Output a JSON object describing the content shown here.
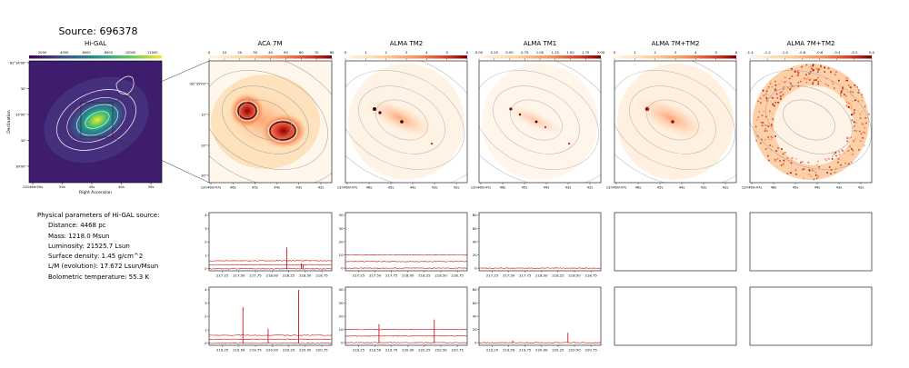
{
  "source_title": "Source: 696378",
  "hi_gal": {
    "title": "Hi-GAL",
    "colorbar_ticks": [
      "2000",
      "4000",
      "6000",
      "8000",
      "10000",
      "12000"
    ],
    "x_ticks": [
      "12h46m55s",
      "50s",
      "45s",
      "40s",
      "35s"
    ],
    "y_ticks": [
      "-62°34'00\"",
      "30\"",
      "35'00\"",
      "30\"",
      "36'00\""
    ],
    "xlabel": "Right Ascension",
    "ylabel": "Declination"
  },
  "maps": [
    {
      "title": "ACA 7M",
      "colorbar_ticks": [
        "0",
        "10",
        "20",
        "30",
        "40",
        "50",
        "60",
        "70",
        "80"
      ],
      "y_ticks": [
        "-62°35'00\"",
        "10\"",
        "20\"",
        "30\""
      ],
      "x_ticks": [
        "12h46m47s",
        "46s",
        "45s",
        "44s",
        "43s",
        "42s"
      ]
    },
    {
      "title": "ALMA TM2",
      "colorbar_ticks": [
        "0",
        "1",
        "2",
        "3",
        "4",
        "5",
        "6"
      ],
      "x_ticks": [
        "12h46m47s",
        "46s",
        "45s",
        "44s",
        "43s",
        "42s"
      ]
    },
    {
      "title": "ALMA TM1",
      "colorbar_ticks": [
        "0.00",
        "0.25",
        "0.50",
        "0.75",
        "1.00",
        "1.25",
        "1.50",
        "1.75",
        "2.00"
      ],
      "x_ticks": [
        "12h46m47s",
        "46s",
        "45s",
        "44s",
        "43s",
        "42s"
      ]
    },
    {
      "title": "ALMA 7M+TM2",
      "colorbar_ticks": [
        "0",
        "1",
        "2",
        "3",
        "4",
        "5",
        "6"
      ],
      "x_ticks": [
        "12h46m47s",
        "46s",
        "45s",
        "44s",
        "43s",
        "42s"
      ]
    },
    {
      "title": "ALMA 7M+TM2",
      "colorbar_ticks": [
        "-1.4",
        "-1.2",
        "-1.0",
        "-0.8",
        "-0.6",
        "-0.4",
        "-0.2",
        "0.0"
      ],
      "x_ticks": [
        "12h46m47s",
        "46s",
        "45s",
        "44s",
        "43s",
        "42s"
      ]
    }
  ],
  "params": {
    "heading": "Physical parameters of Hi-GAL source:",
    "distance": "Distance: 4468 pc",
    "mass": "Mass: 1218.0 Msun",
    "luminosity": "Luminosity: 21525.7 Lsun",
    "surface_density": "Surface density: 1.45 g/cm^2",
    "lm": "L/M (evolution): 17.672 Lsun/Msun",
    "tbol": "Bolometric temperature: 55.3 K"
  },
  "colors": {
    "spectrum": "#c00000",
    "contour_hi": "#ffffff",
    "contour_alma": "#a0a0a0"
  },
  "chart_data": [
    {
      "type": "line",
      "panel": "ACA 7M spectra (upper band)",
      "x_ticks": [
        217.25,
        217.5,
        217.75,
        218.0,
        218.25,
        218.5,
        218.75
      ],
      "xlim": [
        217.05,
        218.9
      ],
      "y_ticks": [
        0,
        1,
        2,
        3,
        4
      ],
      "ylim": [
        -0.15,
        4.2
      ],
      "baselines": [
        0.0,
        0.3,
        0.6
      ],
      "lines": [
        {
          "x": 218.22,
          "y": 1.6
        },
        {
          "x": 218.44,
          "y": 0.4
        },
        {
          "x": 218.47,
          "y": 0.3
        }
      ]
    },
    {
      "type": "line",
      "panel": "ALMA TM2 spectra (upper band)",
      "x_ticks": [
        217.25,
        217.5,
        217.75,
        218.0,
        218.25,
        218.5,
        218.75
      ],
      "xlim": [
        217.05,
        218.9
      ],
      "y_ticks": [
        0,
        10,
        20,
        30,
        40
      ],
      "ylim": [
        -2,
        42
      ],
      "baselines": [
        0.0,
        5.0,
        10.0
      ],
      "lines": []
    },
    {
      "type": "line",
      "panel": "ALMA TM1 spectra (upper band)",
      "x_ticks": [
        217.25,
        217.5,
        217.75,
        218.0,
        218.25,
        218.5,
        218.75
      ],
      "xlim": [
        217.05,
        218.9
      ],
      "y_ticks": [
        0,
        20,
        40,
        60,
        80
      ],
      "ylim": [
        -4,
        84
      ],
      "baselines": [
        0.0
      ],
      "lines": []
    },
    {
      "type": "line",
      "panel": "ACA 7M spectra (lower band)",
      "x_ticks": [
        219.25,
        219.5,
        219.75,
        220.0,
        220.25,
        220.5,
        220.75
      ],
      "xlim": [
        219.05,
        220.9
      ],
      "y_ticks": [
        0,
        1,
        2,
        3,
        4
      ],
      "ylim": [
        -0.15,
        4.2
      ],
      "baselines": [
        0.0,
        0.3,
        0.6
      ],
      "lines": [
        {
          "x": 219.56,
          "y": 2.7
        },
        {
          "x": 219.94,
          "y": 1.1
        },
        {
          "x": 220.4,
          "y": 4.0
        }
      ]
    },
    {
      "type": "line",
      "panel": "ALMA TM2 spectra (lower band)",
      "x_ticks": [
        219.25,
        219.5,
        219.75,
        220.0,
        220.25,
        220.5,
        220.75
      ],
      "xlim": [
        219.05,
        220.9
      ],
      "y_ticks": [
        0,
        10,
        20,
        30,
        40
      ],
      "ylim": [
        -2,
        42
      ],
      "baselines": [
        0.0,
        5.0,
        10.0
      ],
      "lines": [
        {
          "x": 219.56,
          "y": 14.0
        },
        {
          "x": 220.4,
          "y": 17.5
        }
      ]
    },
    {
      "type": "line",
      "panel": "ALMA TM1 spectra (lower band)",
      "x_ticks": [
        219.25,
        219.5,
        219.75,
        220.0,
        220.25,
        220.5,
        220.75
      ],
      "xlim": [
        219.05,
        220.9
      ],
      "y_ticks": [
        0,
        20,
        40,
        60,
        80
      ],
      "ylim": [
        -4,
        84
      ],
      "baselines": [
        0.0
      ],
      "lines": [
        {
          "x": 219.56,
          "y": 3.0
        },
        {
          "x": 220.4,
          "y": 15.0
        }
      ]
    }
  ]
}
